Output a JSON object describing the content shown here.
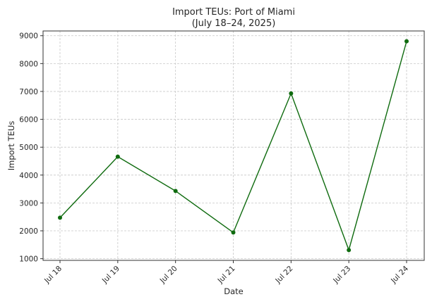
{
  "chart_data": {
    "type": "line",
    "title": [
      "Import TEUs: Port of Miami",
      "(July 18–24, 2025)"
    ],
    "xlabel": "Date",
    "ylabel": "Import TEUs",
    "categories": [
      "Jul 18",
      "Jul 19",
      "Jul 20",
      "Jul 21",
      "Jul 22",
      "Jul 23",
      "Jul 24"
    ],
    "series": [
      {
        "values": [
          2470,
          4660,
          3430,
          1940,
          6930,
          1310,
          8800
        ],
        "color": "#0f6b0f"
      }
    ],
    "yticks": [
      1000,
      2000,
      3000,
      4000,
      5000,
      6000,
      7000,
      8000,
      9000
    ],
    "ylim": [
      940,
      9170
    ],
    "grid": true,
    "markers": true
  }
}
